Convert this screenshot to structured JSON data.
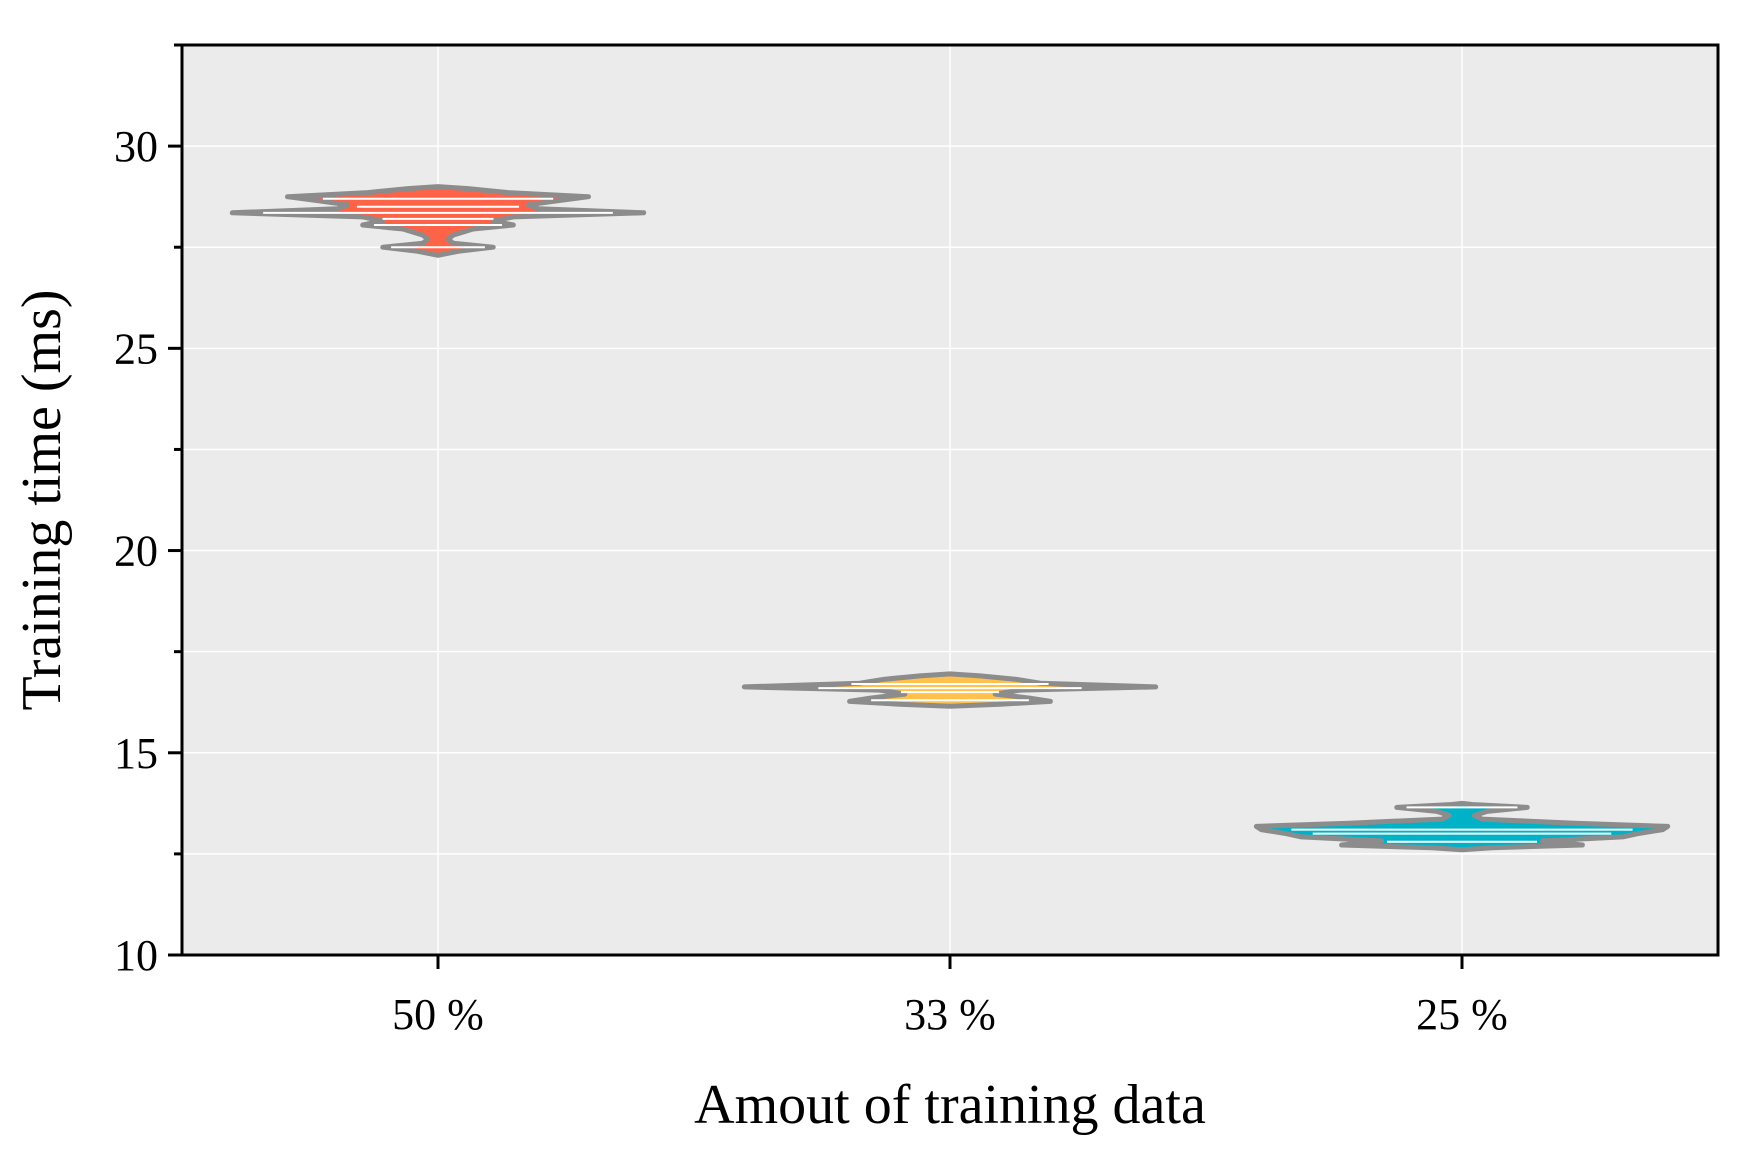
{
  "chart_data": {
    "type": "violin",
    "title": "",
    "xlabel": "Amout of training data",
    "ylabel": "Training time (ms)",
    "ylim": [
      10,
      32.5
    ],
    "yticks": [
      10,
      15,
      20,
      25,
      30
    ],
    "ytick_labels": [
      "10",
      "15",
      "20",
      "25",
      "30"
    ],
    "minor_yticks": [
      12.5,
      17.5,
      22.5,
      27.5,
      32.5
    ],
    "categories": [
      "50 %",
      "33 %",
      "25 %"
    ],
    "grid": true,
    "outline_color": "#8C8C8C",
    "background_color": "#EBEBEB",
    "series": [
      {
        "name": "50 %",
        "color": "#FF6347",
        "min": 27.3,
        "max": 29.0,
        "profile": [
          [
            27.3,
            0
          ],
          [
            27.4,
            0.08
          ],
          [
            27.5,
            0.22
          ],
          [
            27.6,
            0.06
          ],
          [
            27.7,
            0.04
          ],
          [
            27.8,
            0.06
          ],
          [
            27.95,
            0.14
          ],
          [
            28.05,
            0.3
          ],
          [
            28.15,
            0.22
          ],
          [
            28.25,
            0.3
          ],
          [
            28.35,
            0.82
          ],
          [
            28.45,
            0.4
          ],
          [
            28.55,
            0.36
          ],
          [
            28.65,
            0.48
          ],
          [
            28.75,
            0.6
          ],
          [
            28.85,
            0.28
          ],
          [
            28.95,
            0.12
          ],
          [
            29.0,
            0
          ]
        ],
        "medians": [
          27.5,
          28.05,
          28.2,
          28.35,
          28.5,
          28.7
        ]
      },
      {
        "name": "33 %",
        "color": "#FFC04C",
        "min": 16.15,
        "max": 16.95,
        "profile": [
          [
            16.15,
            0
          ],
          [
            16.2,
            0.2
          ],
          [
            16.27,
            0.4
          ],
          [
            16.35,
            0.32
          ],
          [
            16.45,
            0.18
          ],
          [
            16.55,
            0.28
          ],
          [
            16.63,
            0.82
          ],
          [
            16.72,
            0.36
          ],
          [
            16.82,
            0.26
          ],
          [
            16.9,
            0.12
          ],
          [
            16.95,
            0
          ]
        ],
        "medians": [
          16.3,
          16.5,
          16.6,
          16.7
        ]
      },
      {
        "name": "25 %",
        "color": "#00B2C8",
        "min": 12.6,
        "max": 13.75,
        "profile": [
          [
            12.6,
            0
          ],
          [
            12.65,
            0.12
          ],
          [
            12.72,
            0.48
          ],
          [
            12.82,
            0.32
          ],
          [
            12.92,
            0.64
          ],
          [
            13.0,
            0.7
          ],
          [
            13.1,
            0.8
          ],
          [
            13.18,
            0.82
          ],
          [
            13.26,
            0.45
          ],
          [
            13.36,
            0.08
          ],
          [
            13.45,
            0.05
          ],
          [
            13.55,
            0.1
          ],
          [
            13.65,
            0.26
          ],
          [
            13.72,
            0.04
          ],
          [
            13.75,
            0
          ]
        ],
        "medians": [
          12.8,
          13.0,
          13.1,
          13.65
        ]
      }
    ]
  }
}
